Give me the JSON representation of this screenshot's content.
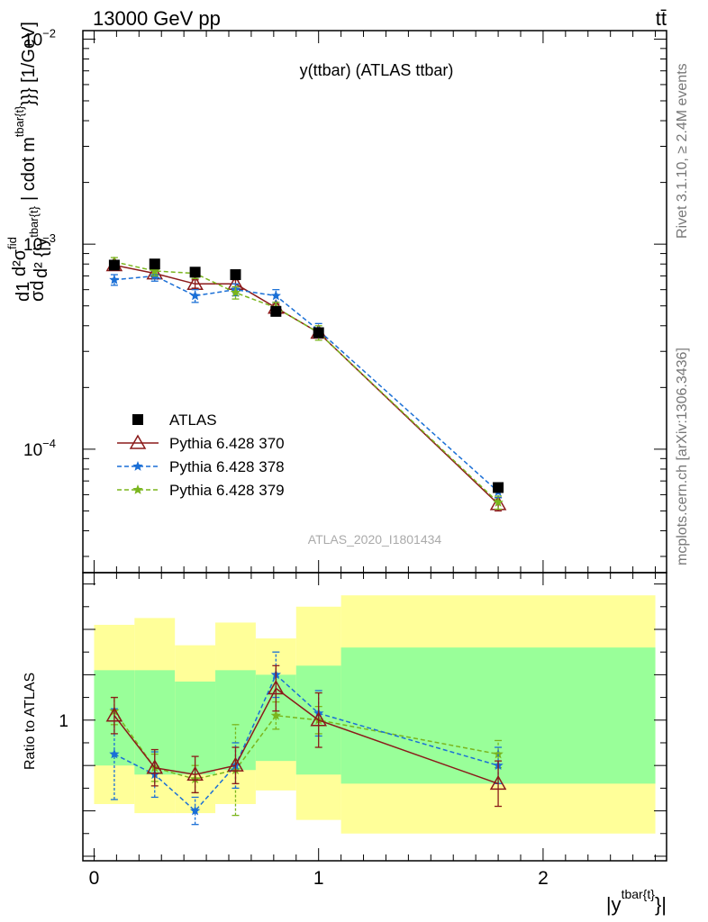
{
  "header": {
    "left": "13000 GeV pp",
    "right": "tt̄"
  },
  "side_text": {
    "rivet": "Rivet 3.1.10, ≥ 2.4M events",
    "mcplots": "mcplots.cern.ch [arXiv:1306.3436]"
  },
  "chart_data": [
    {
      "type": "scatter",
      "panel": "main",
      "title": "y(ttbar) (ATLAS ttbar)",
      "watermark": "ATLAS_2020_I1801434",
      "ylabel": "dσ d^2σ^fid / d^2{|y^{tbar{t}}| cdot m^{tbar{t}}} [1/GeV]",
      "ylabel_parts": {
        "frac1_num": "d1",
        "frac1_den": "σd",
        "frac2_num": "d²σ",
        "frac2_num_sup": "fid",
        "frac2_den": "d² {|y",
        "frac2_den_sup": "tbar{t}",
        "mid": "| cdot m",
        "mid_sup": "tbar{t}",
        "tail": "}}} [1/GeV]"
      },
      "yscale": "log",
      "ylim": [
        2.5e-05,
        0.011
      ],
      "xlim": [
        -0.05,
        2.55
      ],
      "ytick_labels": [
        {
          "base": "10",
          "exp": "−4",
          "value": 0.0001
        },
        {
          "base": "10",
          "exp": "−3",
          "value": 0.001
        },
        {
          "base": "10",
          "exp": "−2",
          "value": 0.01
        }
      ],
      "legend_position": "lower-left",
      "series": [
        {
          "name": "ATLAS",
          "color": "#000000",
          "marker": "square",
          "x": [
            0.09,
            0.27,
            0.45,
            0.63,
            0.81,
            1.0,
            1.8
          ],
          "y": [
            0.00079,
            0.0008,
            0.00073,
            0.00071,
            0.00047,
            0.00037,
            6.5e-05
          ]
        },
        {
          "name": "Pythia 6.428 370",
          "color": "#8b1a1a",
          "marker": "open-triangle",
          "line": "solid",
          "x": [
            0.09,
            0.27,
            0.45,
            0.63,
            0.81,
            1.0,
            1.8
          ],
          "y": [
            0.00079,
            0.00072,
            0.00064,
            0.00064,
            0.00049,
            0.00037,
            5.4e-05
          ],
          "err": [
            3e-05,
            3e-05,
            3e-05,
            3e-05,
            2e-05,
            2e-05,
            4e-06
          ]
        },
        {
          "name": "Pythia 6.428 378",
          "color": "#1a6fd6",
          "marker": "star",
          "line": "dashed",
          "x": [
            0.09,
            0.27,
            0.45,
            0.63,
            0.81,
            1.0,
            1.8
          ],
          "y": [
            0.00067,
            0.0007,
            0.00056,
            0.0006,
            0.00056,
            0.00038,
            6.2e-05
          ],
          "err": [
            4e-05,
            4e-05,
            4e-05,
            4e-05,
            4e-05,
            3e-05,
            4e-06
          ]
        },
        {
          "name": "Pythia 6.428 379",
          "color": "#7ab51d",
          "marker": "star",
          "line": "dashed",
          "x": [
            0.09,
            0.27,
            0.45,
            0.63,
            0.81,
            1.0,
            1.8
          ],
          "y": [
            0.00082,
            0.00074,
            0.00072,
            0.00058,
            0.00049,
            0.00037,
            5.5e-05
          ],
          "err": [
            4e-05,
            4e-05,
            4e-05,
            4e-05,
            3e-05,
            3e-05,
            4e-06
          ]
        }
      ]
    },
    {
      "type": "line",
      "panel": "ratio",
      "ylabel": "Ratio to ATLAS",
      "xlabel": "|y",
      "xlabel_sup": "tbar{t}",
      "xlabel_tail": "}|",
      "xlim": [
        -0.05,
        2.55
      ],
      "ylim": [
        0.38,
        1.65
      ],
      "x_tick_labels": [
        {
          "label": "0",
          "value": 0
        },
        {
          "label": "1",
          "value": 1
        },
        {
          "label": "2",
          "value": 2
        }
      ],
      "y_tick_labels": [
        {
          "label": "1",
          "value": 1
        }
      ],
      "bins": [
        {
          "lo": 0.0,
          "hi": 0.18,
          "inner": [
            0.8,
            1.22
          ],
          "outer": [
            0.63,
            1.42
          ]
        },
        {
          "lo": 0.18,
          "hi": 0.36,
          "inner": [
            0.76,
            1.22
          ],
          "outer": [
            0.59,
            1.45
          ]
        },
        {
          "lo": 0.36,
          "hi": 0.54,
          "inner": [
            0.76,
            1.17
          ],
          "outer": [
            0.59,
            1.33
          ]
        },
        {
          "lo": 0.54,
          "hi": 0.72,
          "inner": [
            0.78,
            1.22
          ],
          "outer": [
            0.63,
            1.43
          ]
        },
        {
          "lo": 0.72,
          "hi": 0.9,
          "inner": [
            0.82,
            1.2
          ],
          "outer": [
            0.69,
            1.36
          ]
        },
        {
          "lo": 0.9,
          "hi": 1.1,
          "inner": [
            0.76,
            1.24
          ],
          "outer": [
            0.56,
            1.5
          ]
        },
        {
          "lo": 1.1,
          "hi": 2.5,
          "inner": [
            0.72,
            1.32
          ],
          "outer": [
            0.5,
            1.55
          ]
        }
      ],
      "band_colors": {
        "inner": "#99ff99",
        "outer": "#ffff99"
      },
      "series": [
        {
          "name": "Pythia 6.428 370",
          "color": "#8b1a1a",
          "line": "solid",
          "x": [
            0.09,
            0.27,
            0.45,
            0.63,
            0.81,
            1.0,
            1.8
          ],
          "y": [
            1.02,
            0.79,
            0.76,
            0.8,
            1.14,
            1.0,
            0.72
          ],
          "err": [
            0.08,
            0.08,
            0.08,
            0.08,
            0.1,
            0.12,
            0.1
          ]
        },
        {
          "name": "Pythia 6.428 378",
          "color": "#1a6fd6",
          "line": "dashed",
          "x": [
            0.09,
            0.27,
            0.45,
            0.63,
            0.81,
            1.0,
            1.8
          ],
          "y": [
            0.85,
            0.76,
            0.6,
            0.8,
            1.2,
            1.03,
            0.8
          ],
          "err": [
            0.2,
            0.1,
            0.06,
            0.1,
            0.1,
            0.1,
            0.08
          ]
        },
        {
          "name": "Pythia 6.428 379",
          "color": "#7ab51d",
          "line": "dashed",
          "x": [
            0.09,
            0.27,
            0.45,
            0.63,
            0.81,
            1.0,
            1.8
          ],
          "y": [
            1.04,
            0.79,
            0.74,
            0.78,
            1.02,
            1.0,
            0.85
          ],
          "err": [
            0.06,
            0.06,
            0.06,
            0.2,
            0.06,
            0.06,
            0.06
          ]
        }
      ]
    }
  ]
}
